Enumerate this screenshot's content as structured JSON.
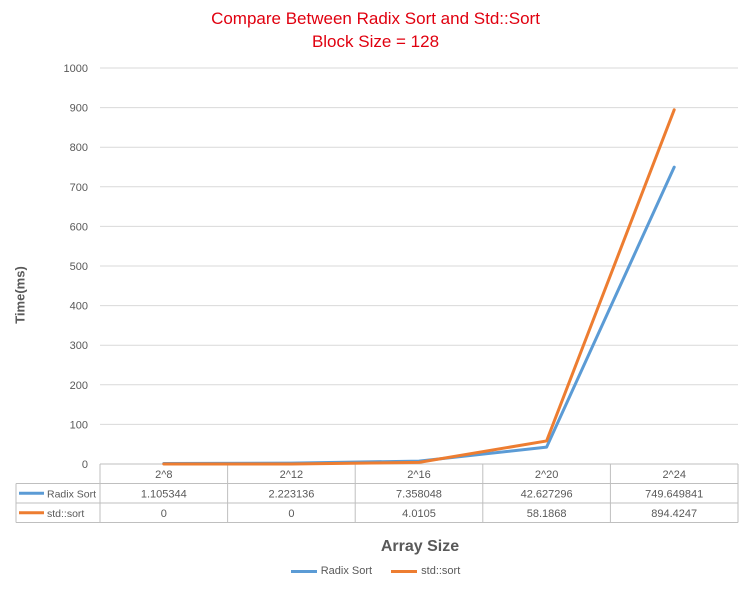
{
  "chart_data": {
    "type": "line",
    "title": "Compare Between Radix Sort and Std::Sort",
    "subtitle": "Block Size = 128",
    "xlabel": "Array Size",
    "ylabel": "Time(ms)",
    "categories": [
      "2^8",
      "2^12",
      "2^16",
      "2^20",
      "2^24"
    ],
    "ylim": [
      0,
      1000
    ],
    "yticks": [
      "0",
      "100",
      "200",
      "300",
      "400",
      "500",
      "600",
      "700",
      "800",
      "900",
      "1000"
    ],
    "grid": true,
    "legend": "bottom",
    "series": [
      {
        "name": "Radix Sort",
        "color": "#5b9bd5",
        "values": [
          1.105344,
          2.223136,
          7.358048,
          42.627296,
          749.649841
        ],
        "labels": [
          "1.105344",
          "2.223136",
          "7.358048",
          "42.627296",
          "749.649841"
        ]
      },
      {
        "name": "std::sort",
        "color": "#ed7d31",
        "values": [
          0,
          0,
          4.0105,
          58.1868,
          894.4247
        ],
        "labels": [
          "0",
          "0",
          "4.0105",
          "58.1868",
          "894.4247"
        ]
      }
    ]
  }
}
